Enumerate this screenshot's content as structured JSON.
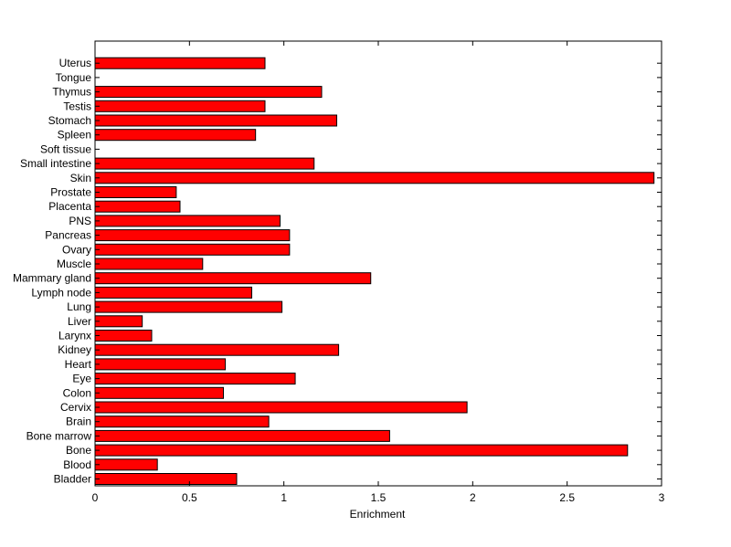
{
  "chart_data": {
    "type": "bar",
    "orientation": "horizontal",
    "xlabel": "Enrichment",
    "ylabel": "",
    "title": "",
    "xlim": [
      0,
      3
    ],
    "xticks": [
      "0",
      "0.5",
      "1",
      "1.5",
      "2",
      "2.5",
      "3"
    ],
    "bar_color": "#ff0000",
    "edge_color": "#000000",
    "grid": false,
    "categories": [
      "Bladder",
      "Blood",
      "Bone",
      "Bone marrow",
      "Brain",
      "Cervix",
      "Colon",
      "Eye",
      "Heart",
      "Kidney",
      "Larynx",
      "Liver",
      "Lung",
      "Lymph node",
      "Mammary gland",
      "Muscle",
      "Ovary",
      "Pancreas",
      "PNS",
      "Placenta",
      "Prostate",
      "Skin",
      "Small intestine",
      "Soft tissue",
      "Spleen",
      "Stomach",
      "Testis",
      "Thymus",
      "Tongue",
      "Uterus"
    ],
    "values": [
      0.75,
      0.33,
      2.82,
      1.56,
      0.92,
      1.97,
      0.68,
      1.06,
      0.69,
      1.29,
      0.3,
      0.25,
      0.99,
      0.83,
      1.46,
      0.57,
      1.03,
      1.03,
      0.98,
      0.45,
      0.43,
      2.96,
      1.16,
      0,
      0.85,
      1.28,
      0.9,
      1.2,
      0,
      0.9
    ]
  }
}
